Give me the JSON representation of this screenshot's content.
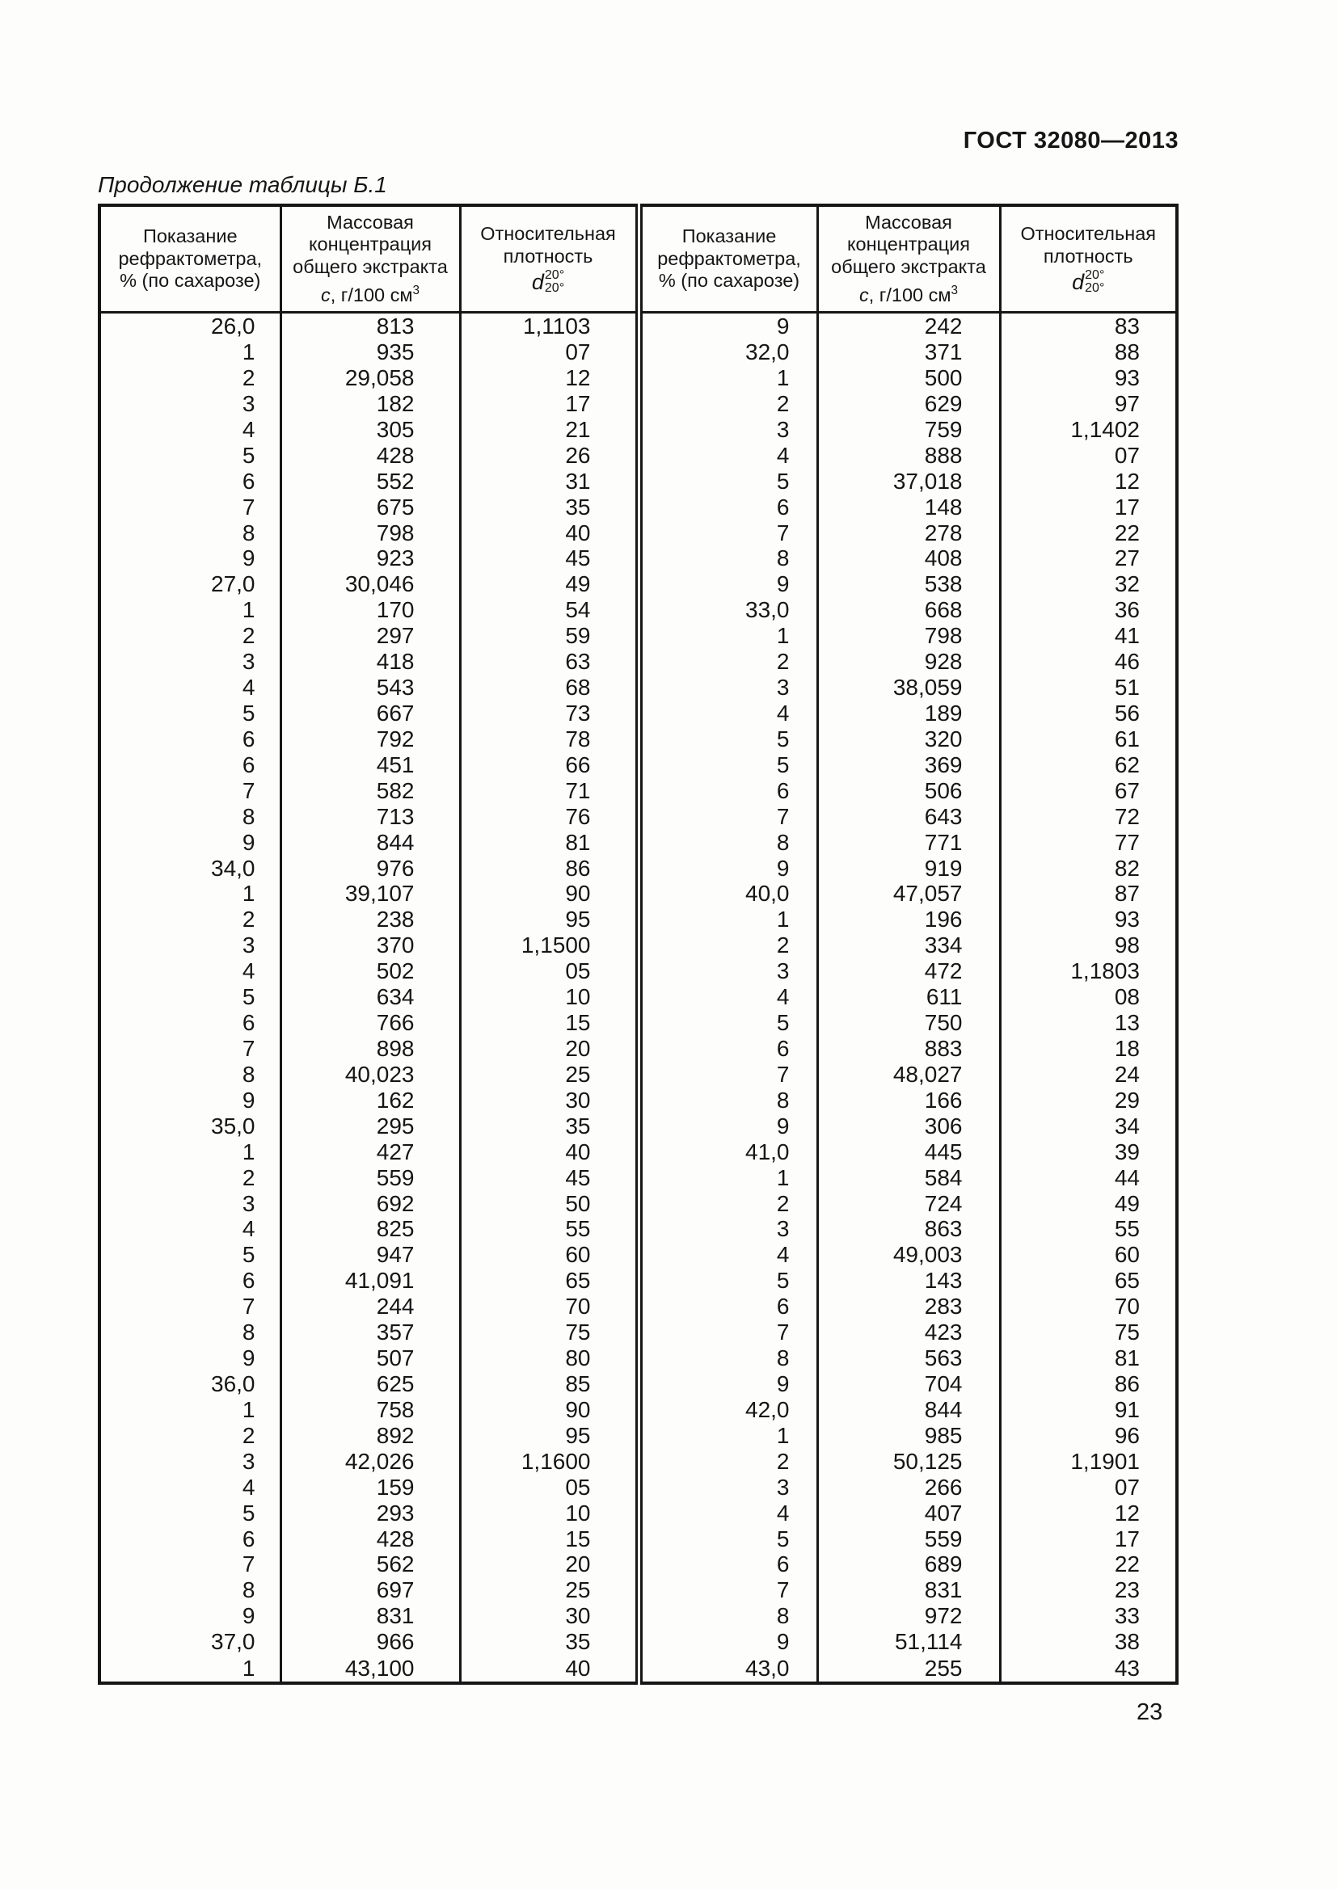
{
  "page": {
    "doc_code": "ГОСТ 32080—2013",
    "caption": "Продолжение таблицы Б.1",
    "page_number": "23"
  },
  "table": {
    "headers": {
      "reading_lines": [
        "Показание",
        "рефрактометра,",
        "% (по сахарозе)"
      ],
      "concentration_lines": [
        "Массовая",
        "концентрация",
        "общего экстракта"
      ],
      "concentration_symbol": "с",
      "concentration_unit": ", г/100 см",
      "concentration_unit_sup": "3",
      "density_lines": [
        "Относительная",
        "плотность"
      ],
      "density_symbol": "d",
      "density_sup": "20°",
      "density_sub": "20°"
    },
    "left_rows": [
      [
        "26,0",
        "813",
        "1,1103"
      ],
      [
        "1",
        "935",
        "07"
      ],
      [
        "2",
        "29,058",
        "12"
      ],
      [
        "3",
        "182",
        "17"
      ],
      [
        "4",
        "305",
        "21"
      ],
      [
        "5",
        "428",
        "26"
      ],
      [
        "6",
        "552",
        "31"
      ],
      [
        "7",
        "675",
        "35"
      ],
      [
        "8",
        "798",
        "40"
      ],
      [
        "9",
        "923",
        "45"
      ],
      [
        "27,0",
        "30,046",
        "49"
      ],
      [
        "1",
        "170",
        "54"
      ],
      [
        "2",
        "297",
        "59"
      ],
      [
        "3",
        "418",
        "63"
      ],
      [
        "4",
        "543",
        "68"
      ],
      [
        "5",
        "667",
        "73"
      ],
      [
        "6",
        "792",
        "78"
      ],
      [
        "6",
        "451",
        "66"
      ],
      [
        "7",
        "582",
        "71"
      ],
      [
        "8",
        "713",
        "76"
      ],
      [
        "9",
        "844",
        "81"
      ],
      [
        "34,0",
        "976",
        "86"
      ],
      [
        "1",
        "39,107",
        "90"
      ],
      [
        "2",
        "238",
        "95"
      ],
      [
        "3",
        "370",
        "1,1500"
      ],
      [
        "4",
        "502",
        "05"
      ],
      [
        "5",
        "634",
        "10"
      ],
      [
        "6",
        "766",
        "15"
      ],
      [
        "7",
        "898",
        "20"
      ],
      [
        "8",
        "40,023",
        "25"
      ],
      [
        "9",
        "162",
        "30"
      ],
      [
        "35,0",
        "295",
        "35"
      ],
      [
        "1",
        "427",
        "40"
      ],
      [
        "2",
        "559",
        "45"
      ],
      [
        "3",
        "692",
        "50"
      ],
      [
        "4",
        "825",
        "55"
      ],
      [
        "5",
        "947",
        "60"
      ],
      [
        "6",
        "41,091",
        "65"
      ],
      [
        "7",
        "244",
        "70"
      ],
      [
        "8",
        "357",
        "75"
      ],
      [
        "9",
        "507",
        "80"
      ],
      [
        "36,0",
        "625",
        "85"
      ],
      [
        "1",
        "758",
        "90"
      ],
      [
        "2",
        "892",
        "95"
      ],
      [
        "3",
        "42,026",
        "1,1600"
      ],
      [
        "4",
        "159",
        "05"
      ],
      [
        "5",
        "293",
        "10"
      ],
      [
        "6",
        "428",
        "15"
      ],
      [
        "7",
        "562",
        "20"
      ],
      [
        "8",
        "697",
        "25"
      ],
      [
        "9",
        "831",
        "30"
      ],
      [
        "37,0",
        "966",
        "35"
      ],
      [
        "1",
        "43,100",
        "40"
      ]
    ],
    "right_rows": [
      [
        "9",
        "242",
        "83"
      ],
      [
        "32,0",
        "371",
        "88"
      ],
      [
        "1",
        "500",
        "93"
      ],
      [
        "2",
        "629",
        "97"
      ],
      [
        "3",
        "759",
        "1,1402"
      ],
      [
        "4",
        "888",
        "07"
      ],
      [
        "5",
        "37,018",
        "12"
      ],
      [
        "6",
        "148",
        "17"
      ],
      [
        "7",
        "278",
        "22"
      ],
      [
        "8",
        "408",
        "27"
      ],
      [
        "9",
        "538",
        "32"
      ],
      [
        "33,0",
        "668",
        "36"
      ],
      [
        "1",
        "798",
        "41"
      ],
      [
        "2",
        "928",
        "46"
      ],
      [
        "3",
        "38,059",
        "51"
      ],
      [
        "4",
        "189",
        "56"
      ],
      [
        "5",
        "320",
        "61"
      ],
      [
        "5",
        "369",
        "62"
      ],
      [
        "6",
        "506",
        "67"
      ],
      [
        "7",
        "643",
        "72"
      ],
      [
        "8",
        "771",
        "77"
      ],
      [
        "9",
        "919",
        "82"
      ],
      [
        "40,0",
        "47,057",
        "87"
      ],
      [
        "1",
        "196",
        "93"
      ],
      [
        "2",
        "334",
        "98"
      ],
      [
        "3",
        "472",
        "1,1803"
      ],
      [
        "4",
        "611",
        "08"
      ],
      [
        "5",
        "750",
        "13"
      ],
      [
        "6",
        "883",
        "18"
      ],
      [
        "7",
        "48,027",
        "24"
      ],
      [
        "8",
        "166",
        "29"
      ],
      [
        "9",
        "306",
        "34"
      ],
      [
        "41,0",
        "445",
        "39"
      ],
      [
        "1",
        "584",
        "44"
      ],
      [
        "2",
        "724",
        "49"
      ],
      [
        "3",
        "863",
        "55"
      ],
      [
        "4",
        "49,003",
        "60"
      ],
      [
        "5",
        "143",
        "65"
      ],
      [
        "6",
        "283",
        "70"
      ],
      [
        "7",
        "423",
        "75"
      ],
      [
        "8",
        "563",
        "81"
      ],
      [
        "9",
        "704",
        "86"
      ],
      [
        "42,0",
        "844",
        "91"
      ],
      [
        "1",
        "985",
        "96"
      ],
      [
        "2",
        "50,125",
        "1,1901"
      ],
      [
        "3",
        "266",
        "07"
      ],
      [
        "4",
        "407",
        "12"
      ],
      [
        "5",
        "559",
        "17"
      ],
      [
        "6",
        "689",
        "22"
      ],
      [
        "7",
        "831",
        "23"
      ],
      [
        "8",
        "972",
        "33"
      ],
      [
        "9",
        "51,114",
        "38"
      ],
      [
        "43,0",
        "255",
        "43"
      ]
    ]
  }
}
